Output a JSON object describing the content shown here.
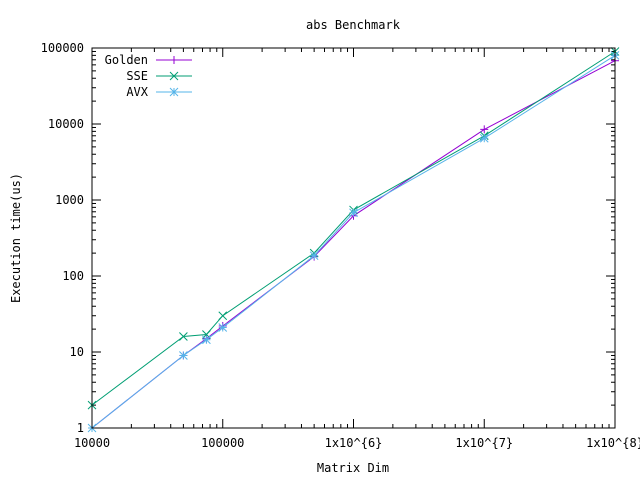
{
  "chart_data": {
    "type": "line",
    "title": "abs Benchmark",
    "xlabel": "Matrix Dim",
    "ylabel": "Execution time(us)",
    "xscale": "log",
    "yscale": "log",
    "xlim": [
      10000,
      100000000
    ],
    "ylim": [
      1,
      100000
    ],
    "grid": false,
    "legend_position": "top-left",
    "x_ticks": [
      {
        "value": 10000,
        "label": "10000"
      },
      {
        "value": 100000,
        "label": "100000"
      },
      {
        "value": 1000000,
        "label": "1x10^{6}"
      },
      {
        "value": 10000000,
        "label": "1x10^{7}"
      },
      {
        "value": 100000000,
        "label": "1x10^{8}"
      }
    ],
    "y_ticks": [
      {
        "value": 1,
        "label": "1"
      },
      {
        "value": 10,
        "label": "10"
      },
      {
        "value": 100,
        "label": "100"
      },
      {
        "value": 1000,
        "label": "1000"
      },
      {
        "value": 10000,
        "label": "10000"
      },
      {
        "value": 100000,
        "label": "100000"
      }
    ],
    "x": [
      10000,
      50000,
      75000,
      100000,
      500000,
      1000000,
      10000000,
      100000000
    ],
    "series": [
      {
        "name": "Golden",
        "color": "#9400d3",
        "marker": "plus",
        "values": [
          1,
          9,
          15,
          22,
          180,
          620,
          8500,
          68000
        ]
      },
      {
        "name": "SSE",
        "color": "#009e73",
        "marker": "cross",
        "values": [
          2,
          16,
          17,
          30,
          200,
          740,
          7000,
          90000
        ]
      },
      {
        "name": "AVX",
        "color": "#56b4e9",
        "marker": "star",
        "values": [
          1,
          9,
          14.5,
          21,
          185,
          680,
          6500,
          80000
        ]
      }
    ]
  }
}
